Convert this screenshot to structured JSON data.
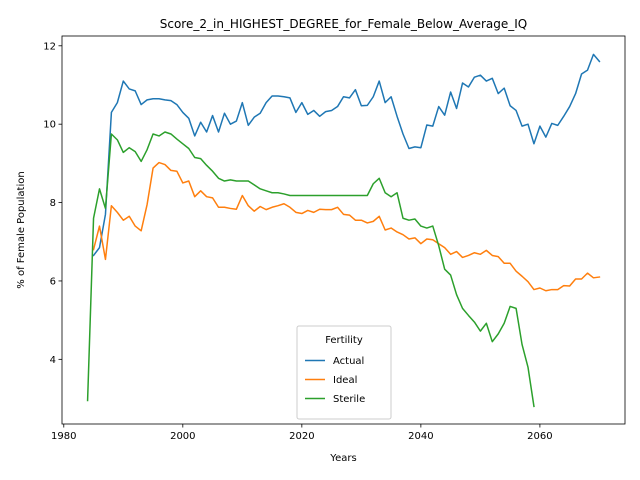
{
  "chart_data": {
    "type": "line",
    "title": "Score_2_in_HIGHEST_DEGREE_for_Female_Below_Average_IQ",
    "xlabel": "Years",
    "ylabel": "% of Female Population",
    "xlim": [
      1979.7,
      2074.3
    ],
    "ylim": [
      2.35,
      12.25
    ],
    "xticks": [
      1980,
      2000,
      2020,
      2040,
      2060
    ],
    "yticks": [
      4,
      6,
      8,
      10,
      12
    ],
    "grid": false,
    "legend": {
      "title": "Fertility",
      "placement": "lower-center"
    },
    "series": [
      {
        "name": "Actual",
        "color": "#1f77b4",
        "x": [
          1985,
          1986,
          1987,
          1988,
          1989,
          1990,
          1991,
          1992,
          1993,
          1994,
          1995,
          1996,
          1997,
          1998,
          1999,
          2000,
          2001,
          2002,
          2003,
          2004,
          2005,
          2006,
          2007,
          2008,
          2009,
          2010,
          2011,
          2012,
          2013,
          2014,
          2015,
          2016,
          2017,
          2018,
          2019,
          2020,
          2021,
          2022,
          2023,
          2024,
          2025,
          2026,
          2027,
          2028,
          2029,
          2030,
          2031,
          2032,
          2033,
          2034,
          2035,
          2036,
          2037,
          2038,
          2039,
          2040,
          2041,
          2042,
          2043,
          2044,
          2045,
          2046,
          2047,
          2048,
          2049,
          2050,
          2051,
          2052,
          2053,
          2054,
          2055,
          2056,
          2057,
          2058,
          2059,
          2060,
          2061,
          2062,
          2063,
          2064,
          2065,
          2066,
          2067,
          2068,
          2069,
          2070
        ],
        "values": [
          6.65,
          6.85,
          7.7,
          10.3,
          10.55,
          11.1,
          10.9,
          10.85,
          10.5,
          10.62,
          10.65,
          10.65,
          10.62,
          10.6,
          10.5,
          10.3,
          10.15,
          9.7,
          10.05,
          9.8,
          10.22,
          9.8,
          10.28,
          10.0,
          10.08,
          10.55,
          9.97,
          10.18,
          10.28,
          10.55,
          10.72,
          10.72,
          10.7,
          10.67,
          10.3,
          10.55,
          10.25,
          10.35,
          10.2,
          10.32,
          10.35,
          10.45,
          10.7,
          10.67,
          10.88,
          10.47,
          10.48,
          10.7,
          11.1,
          10.55,
          10.7,
          10.2,
          9.75,
          9.38,
          9.42,
          9.4,
          9.98,
          9.95,
          10.45,
          10.23,
          10.82,
          10.4,
          11.05,
          10.95,
          11.2,
          11.25,
          11.1,
          11.17,
          10.78,
          10.92,
          10.47,
          10.35,
          9.95,
          10.0,
          9.5,
          9.95,
          9.67,
          10.02,
          9.97,
          10.2,
          10.45,
          10.78,
          11.28,
          11.38,
          11.78,
          11.6
        ]
      },
      {
        "name": "Ideal",
        "color": "#ff7f0e",
        "x": [
          1985,
          1986,
          1987,
          1988,
          1989,
          1990,
          1991,
          1992,
          1993,
          1994,
          1995,
          1996,
          1997,
          1998,
          1999,
          2000,
          2001,
          2002,
          2003,
          2004,
          2005,
          2006,
          2007,
          2008,
          2009,
          2010,
          2011,
          2012,
          2013,
          2014,
          2015,
          2016,
          2017,
          2018,
          2019,
          2020,
          2021,
          2022,
          2023,
          2024,
          2025,
          2026,
          2027,
          2028,
          2029,
          2030,
          2031,
          2032,
          2033,
          2034,
          2035,
          2036,
          2037,
          2038,
          2039,
          2040,
          2041,
          2042,
          2043,
          2044,
          2045,
          2046,
          2047,
          2048,
          2049,
          2050,
          2051,
          2052,
          2053,
          2054,
          2055,
          2056,
          2057,
          2058,
          2059,
          2060,
          2061,
          2062,
          2063,
          2064,
          2065,
          2066,
          2067,
          2068,
          2069,
          2070
        ],
        "values": [
          6.8,
          7.4,
          6.55,
          7.92,
          7.75,
          7.55,
          7.65,
          7.4,
          7.28,
          7.95,
          8.88,
          9.02,
          8.97,
          8.82,
          8.8,
          8.5,
          8.55,
          8.15,
          8.3,
          8.15,
          8.12,
          7.88,
          7.88,
          7.85,
          7.83,
          8.18,
          7.92,
          7.78,
          7.9,
          7.82,
          7.88,
          7.92,
          7.97,
          7.88,
          7.75,
          7.72,
          7.8,
          7.75,
          7.83,
          7.82,
          7.82,
          7.88,
          7.7,
          7.68,
          7.55,
          7.55,
          7.48,
          7.52,
          7.65,
          7.3,
          7.35,
          7.25,
          7.18,
          7.07,
          7.1,
          6.95,
          7.07,
          7.05,
          6.95,
          6.85,
          6.68,
          6.75,
          6.6,
          6.65,
          6.72,
          6.68,
          6.78,
          6.65,
          6.62,
          6.45,
          6.45,
          6.25,
          6.12,
          5.98,
          5.78,
          5.82,
          5.75,
          5.78,
          5.78,
          5.88,
          5.87,
          6.05,
          6.05,
          6.2,
          6.08,
          6.1
        ]
      },
      {
        "name": "Sterile",
        "color": "#2ca02c",
        "x": [
          1984,
          1985,
          1986,
          1987,
          1988,
          1989,
          1990,
          1991,
          1992,
          1993,
          1994,
          1995,
          1996,
          1997,
          1998,
          1999,
          2000,
          2001,
          2002,
          2003,
          2004,
          2005,
          2006,
          2007,
          2008,
          2009,
          2010,
          2011,
          2012,
          2013,
          2014,
          2015,
          2016,
          2017,
          2018,
          2019,
          2020,
          2021,
          2022,
          2023,
          2024,
          2025,
          2026,
          2027,
          2028,
          2029,
          2030,
          2031,
          2032,
          2033,
          2034,
          2035,
          2036,
          2037,
          2038,
          2039,
          2040,
          2041,
          2042,
          2043,
          2044,
          2045,
          2046,
          2047,
          2048,
          2049,
          2050,
          2051,
          2052,
          2053,
          2054,
          2055,
          2056,
          2057,
          2058,
          2059
        ],
        "values": [
          2.95,
          7.6,
          8.35,
          7.85,
          9.75,
          9.6,
          9.28,
          9.4,
          9.3,
          9.05,
          9.35,
          9.75,
          9.7,
          9.8,
          9.75,
          9.62,
          9.5,
          9.38,
          9.15,
          9.12,
          8.95,
          8.8,
          8.62,
          8.55,
          8.58,
          8.55,
          8.55,
          8.55,
          8.45,
          8.35,
          8.3,
          8.25,
          8.25,
          8.22,
          8.18,
          8.18,
          8.18,
          8.18,
          8.18,
          8.18,
          8.18,
          8.18,
          8.18,
          8.18,
          8.18,
          8.18,
          8.18,
          8.18,
          8.48,
          8.62,
          8.25,
          8.15,
          8.25,
          7.6,
          7.55,
          7.58,
          7.4,
          7.35,
          7.4,
          6.9,
          6.3,
          6.15,
          5.65,
          5.3,
          5.12,
          4.95,
          4.72,
          4.92,
          4.45,
          4.65,
          4.92,
          5.35,
          5.3,
          4.38,
          3.8,
          2.8
        ]
      }
    ]
  }
}
